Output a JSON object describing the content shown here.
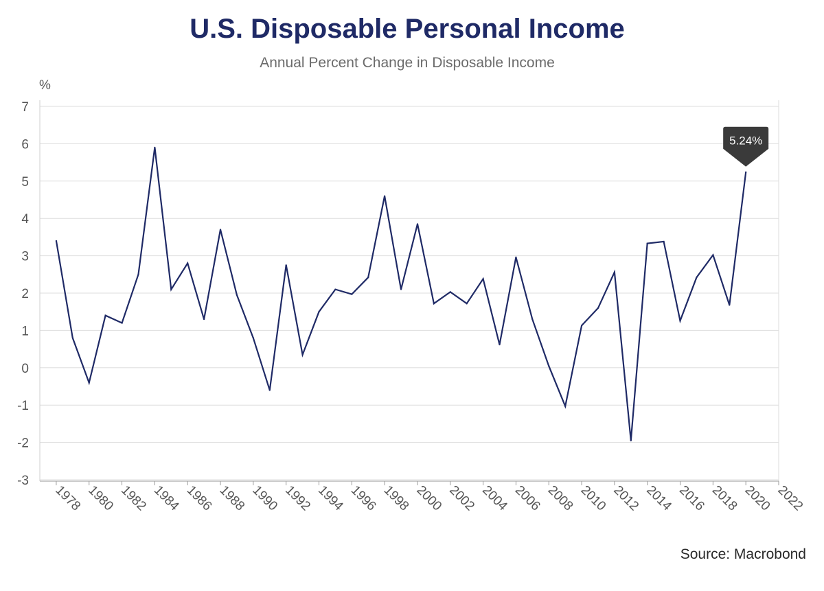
{
  "header": {
    "title": "U.S. Disposable Personal Income",
    "subtitle": "Annual Percent Change in Disposable Income"
  },
  "footer": {
    "source": "Source: Macrobond"
  },
  "colors": {
    "title": "#1f2a66",
    "line": "#1f2a66",
    "grid": "#dedede",
    "callout": "#3a3a3a"
  },
  "chart_data": {
    "type": "line",
    "title": "U.S. Disposable Personal Income",
    "subtitle": "Annual Percent Change in Disposable Income",
    "ylabel": "%",
    "xlabel": "",
    "ylim": [
      -3,
      7
    ],
    "xlim": [
      1977,
      2022
    ],
    "yticks": [
      -3,
      -2,
      -1,
      0,
      1,
      2,
      3,
      4,
      5,
      6,
      7
    ],
    "xticks": [
      1978,
      1980,
      1982,
      1984,
      1986,
      1988,
      1990,
      1992,
      1994,
      1996,
      1998,
      2000,
      2002,
      2004,
      2006,
      2008,
      2010,
      2012,
      2014,
      2016,
      2018,
      2020,
      2022
    ],
    "grid": true,
    "series": [
      {
        "x": [
          1978,
          1979,
          1980,
          1981,
          1982,
          1983,
          1984,
          1985,
          1986,
          1987,
          1988,
          1989,
          1990,
          1991,
          1992,
          1993,
          1994,
          1995,
          1996,
          1997,
          1998,
          1999,
          2000,
          2001,
          2002,
          2003,
          2004,
          2005,
          2006,
          2007,
          2008,
          2009,
          2010,
          2011,
          2012,
          2013,
          2014,
          2015,
          2016,
          2017,
          2018,
          2019,
          2020
        ],
        "values": [
          3.4,
          0.8,
          -0.4,
          1.4,
          1.2,
          2.5,
          5.9,
          2.1,
          2.8,
          1.3,
          3.7,
          1.95,
          0.8,
          -0.6,
          2.75,
          0.35,
          1.5,
          2.1,
          1.97,
          2.42,
          4.6,
          2.1,
          3.85,
          1.72,
          2.03,
          1.72,
          2.38,
          0.62,
          2.96,
          1.3,
          0.05,
          -1.03,
          1.13,
          1.6,
          2.56,
          -1.95,
          3.33,
          3.38,
          1.26,
          2.42,
          3.02,
          1.68,
          5.24
        ]
      }
    ],
    "annotations": [
      {
        "x": 2020,
        "value": 5.24,
        "text": "5.24%"
      }
    ]
  }
}
